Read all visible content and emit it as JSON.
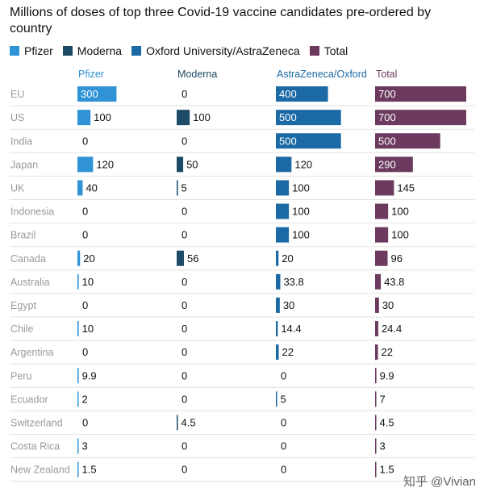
{
  "chart_data": {
    "type": "bar",
    "title": "Millions of doses of top three Covid-19 vaccine candidates pre-ordered by country",
    "legend": [
      "Pfizer",
      "Moderna",
      "Oxford University/AstraZeneca",
      "Total"
    ],
    "column_headers": [
      "Pfizer",
      "Moderna",
      "AstraZeneca/Oxford",
      "Total"
    ],
    "categories": [
      "EU",
      "US",
      "India",
      "Japan",
      "UK",
      "Indonesia",
      "Brazil",
      "Canada",
      "Australia",
      "Egypt",
      "Chile",
      "Argentina",
      "Peru",
      "Ecuador",
      "Switzerland",
      "Costa Rica",
      "New Zealand"
    ],
    "series": [
      {
        "name": "Pfizer",
        "color": "#2f93d6",
        "values": [
          300,
          100,
          0,
          120,
          40,
          0,
          0,
          20,
          10,
          0,
          10,
          0,
          9.9,
          2,
          0,
          3,
          1.5
        ],
        "labels": [
          "300",
          "100",
          "0",
          "120",
          "40",
          "0",
          "0",
          "20",
          "10",
          "0",
          "10",
          "0",
          "9.9",
          "2",
          "0",
          "3",
          "1.5"
        ]
      },
      {
        "name": "Moderna",
        "color": "#1d4a66",
        "values": [
          0,
          100,
          0,
          50,
          5,
          0,
          0,
          56,
          0,
          0,
          0,
          0,
          0,
          0,
          4.5,
          0,
          0
        ],
        "labels": [
          "0",
          "100",
          "0",
          "50",
          "5",
          "0",
          "0",
          "56",
          "0",
          "0",
          "0",
          "0",
          "0",
          "0",
          "4.5",
          "0",
          "0"
        ]
      },
      {
        "name": "AstraZeneca/Oxford",
        "color": "#1b6aa5",
        "values": [
          400,
          500,
          500,
          120,
          100,
          100,
          100,
          20,
          33.8,
          30,
          14.4,
          22,
          0,
          5,
          0,
          0,
          0
        ],
        "labels": [
          "400",
          "500",
          "500",
          "120",
          "100",
          "100",
          "100",
          "20",
          "33.8",
          "30",
          "14.4",
          "22",
          "0",
          "5",
          "0",
          "0",
          "0"
        ]
      },
      {
        "name": "Total",
        "color": "#6b3a5e",
        "values": [
          700,
          700,
          500,
          290,
          145,
          100,
          100,
          96,
          43.8,
          30,
          24.4,
          22,
          9.9,
          7,
          4.5,
          3,
          1.5
        ],
        "labels": [
          "700",
          "700",
          "500",
          "290",
          "145",
          "100",
          "100",
          "96",
          "43.8",
          "30",
          "24.4",
          "22",
          "9.9",
          "7",
          "4.5",
          "3",
          "1.5"
        ]
      }
    ]
  },
  "watermark": "知乎 @Vivian"
}
